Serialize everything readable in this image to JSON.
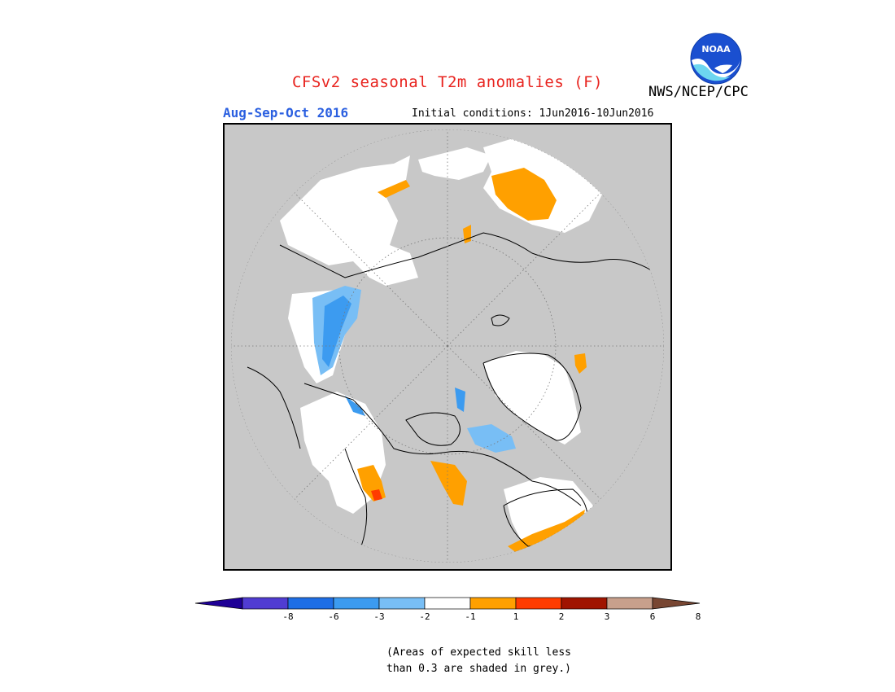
{
  "title": "CFSv2 seasonal T2m anomalies (F)",
  "agency": "NWS/NCEP/CPC",
  "logo_text": "NOAA",
  "period": "Aug-Sep-Oct 2016",
  "initial_conditions": "Initial conditions: 1Jun2016-10Jun2016",
  "colors": {
    "title": "#e8231e",
    "period": "#2a5fe0",
    "skill_grey": "#c8c8c8",
    "land_white": "#ffffff",
    "coast": "#000000"
  },
  "legend": {
    "ticks": [
      "-8",
      "-6",
      "-3",
      "-2",
      "-1",
      "1",
      "2",
      "3",
      "6",
      "8"
    ],
    "colors": [
      "#1e0096",
      "#503cd2",
      "#1e6ee6",
      "#3c9bf0",
      "#78bef5",
      "#ffffff",
      "#ffa000",
      "#ff3c00",
      "#a01400",
      "#c8a08c",
      "#784632"
    ]
  },
  "note": {
    "line1": "(Areas of expected skill less",
    "line2": "than 0.3 are shaded in grey.)"
  }
}
